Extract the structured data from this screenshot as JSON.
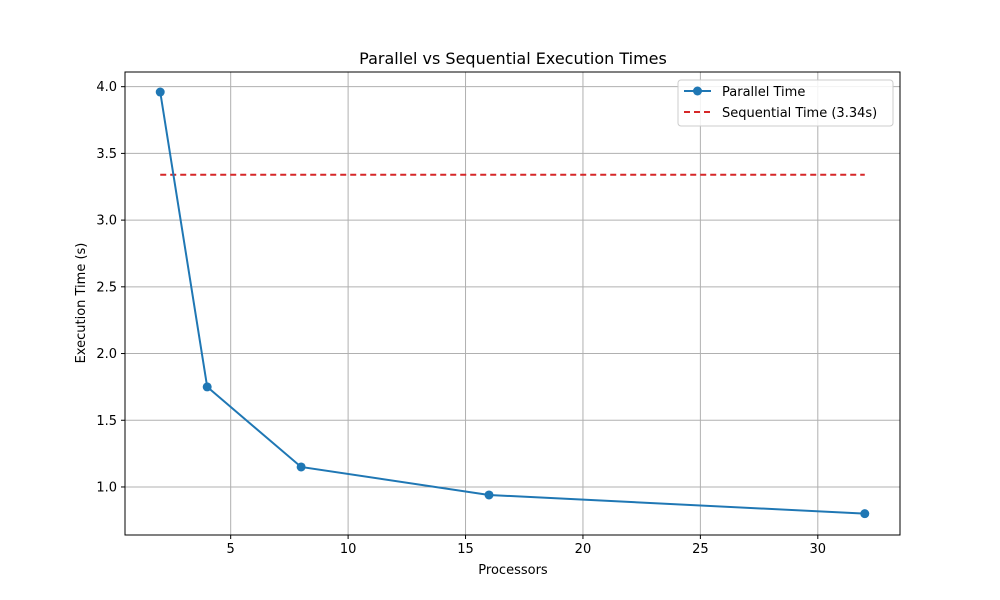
{
  "chart_data": {
    "type": "line",
    "title": "Parallel vs Sequential Execution Times",
    "xlabel": "Processors",
    "ylabel": "Execution Time (s)",
    "xlim": [
      0.5,
      33.5
    ],
    "ylim": [
      0.64,
      4.11
    ],
    "xticks": [
      5,
      10,
      15,
      20,
      25,
      30
    ],
    "yticks": [
      1.0,
      1.5,
      2.0,
      2.5,
      3.0,
      3.5,
      4.0
    ],
    "xtick_labels": [
      "5",
      "10",
      "15",
      "20",
      "25",
      "30"
    ],
    "ytick_labels": [
      "1.0",
      "1.5",
      "2.0",
      "2.5",
      "3.0",
      "3.5",
      "4.0"
    ],
    "grid": true,
    "legend_position": "top-right",
    "series": [
      {
        "name": "Parallel Time",
        "style": "solid-with-markers",
        "color": "#1f77b4",
        "x": [
          2,
          4,
          8,
          16,
          32
        ],
        "y": [
          3.96,
          1.75,
          1.15,
          0.94,
          0.8
        ]
      },
      {
        "name": "Sequential Time (3.34s)",
        "style": "dashed",
        "color": "#d62728",
        "x": [
          2,
          32
        ],
        "y": [
          3.34,
          3.34
        ]
      }
    ]
  }
}
